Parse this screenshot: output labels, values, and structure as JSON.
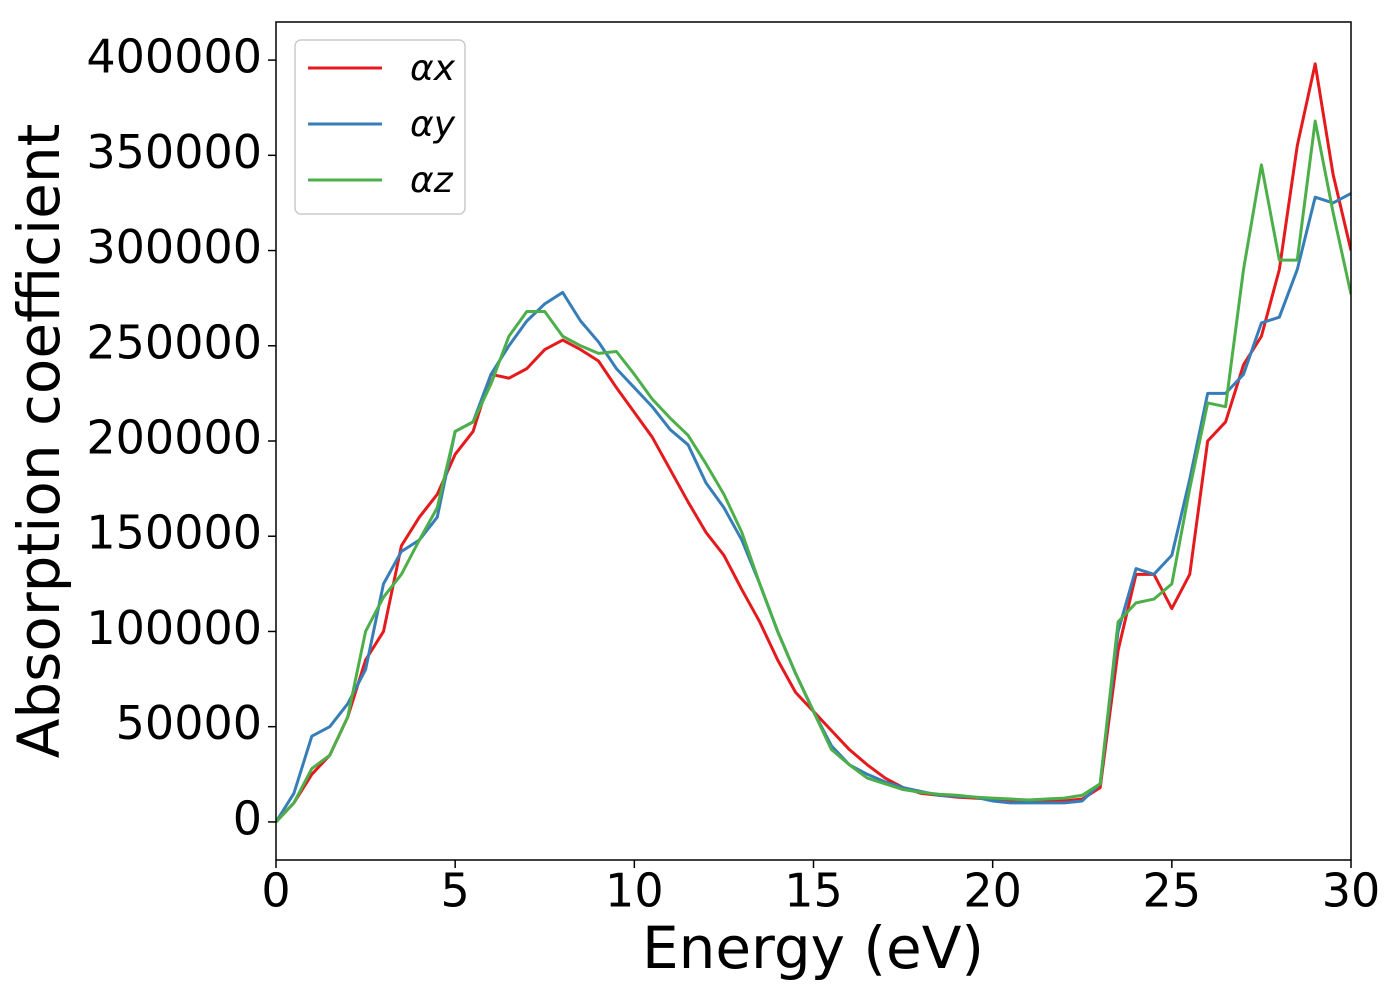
{
  "chart_data": {
    "type": "line",
    "xlabel": "Energy (eV)",
    "ylabel": "Absorption coefficient",
    "x": [
      0,
      0.5,
      1,
      1.5,
      2,
      2.5,
      3,
      3.5,
      4,
      4.5,
      5,
      5.5,
      6,
      6.5,
      7,
      7.5,
      8,
      8.5,
      9,
      9.5,
      10,
      10.5,
      11,
      11.5,
      12,
      12.5,
      13,
      13.5,
      14,
      14.5,
      15,
      15.5,
      16,
      16.5,
      17,
      17.5,
      18,
      18.5,
      19,
      19.5,
      20,
      20.5,
      21,
      21.5,
      22,
      22.5,
      23,
      23.5,
      24,
      24.5,
      25,
      25.5,
      26,
      26.5,
      27,
      27.5,
      28,
      28.5,
      29,
      29.5,
      30
    ],
    "series": [
      {
        "name": "αx",
        "color": "#e41a1c",
        "values": [
          0,
          10000,
          25000,
          35000,
          55000,
          85000,
          100000,
          145000,
          160000,
          172000,
          193000,
          205000,
          235000,
          233000,
          238000,
          248000,
          253000,
          248000,
          242000,
          228000,
          215000,
          202000,
          185000,
          168000,
          152000,
          140000,
          122000,
          105000,
          85000,
          68000,
          58000,
          48000,
          38000,
          30000,
          23000,
          18000,
          15000,
          14000,
          13000,
          12500,
          12000,
          11000,
          11000,
          11000,
          11000,
          12000,
          18000,
          90000,
          130000,
          130000,
          112000,
          130000,
          200000,
          210000,
          240000,
          255000,
          290000,
          355000,
          398000,
          340000,
          300000
        ]
      },
      {
        "name": "αy",
        "color": "#377eb8",
        "values": [
          0,
          15000,
          45000,
          50000,
          62000,
          80000,
          125000,
          142000,
          148000,
          160000,
          205000,
          210000,
          235000,
          250000,
          263000,
          272000,
          278000,
          263000,
          252000,
          238000,
          228000,
          218000,
          206000,
          198000,
          178000,
          165000,
          148000,
          125000,
          100000,
          78000,
          58000,
          40000,
          30000,
          25000,
          21000,
          18000,
          16000,
          14000,
          13500,
          13000,
          11000,
          10000,
          10000,
          10000,
          10000,
          11000,
          20000,
          100000,
          133000,
          130000,
          140000,
          180000,
          225000,
          225000,
          235000,
          262000,
          265000,
          290000,
          328000,
          325000,
          330000
        ]
      },
      {
        "name": "αz",
        "color": "#4daf4a",
        "values": [
          0,
          10000,
          28000,
          35000,
          55000,
          100000,
          118000,
          130000,
          148000,
          165000,
          205000,
          210000,
          230000,
          255000,
          268000,
          268000,
          255000,
          250000,
          246000,
          247000,
          235000,
          222000,
          212000,
          203000,
          188000,
          172000,
          152000,
          125000,
          100000,
          78000,
          58000,
          38000,
          30000,
          23000,
          20000,
          17000,
          15500,
          14500,
          14000,
          13000,
          12500,
          12000,
          11500,
          12000,
          12500,
          14000,
          20000,
          105000,
          115000,
          117000,
          125000,
          175000,
          220000,
          218000,
          290000,
          345000,
          295000,
          295000,
          368000,
          320000,
          277000
        ]
      }
    ],
    "xlim": [
      0,
      30
    ],
    "xticks": [
      0,
      5,
      10,
      15,
      20,
      25,
      30
    ],
    "ylim": [
      -20000,
      420000
    ],
    "yticks": [
      0,
      50000,
      100000,
      150000,
      200000,
      250000,
      300000,
      350000,
      400000
    ],
    "legend": "upper left",
    "grid": false
  }
}
